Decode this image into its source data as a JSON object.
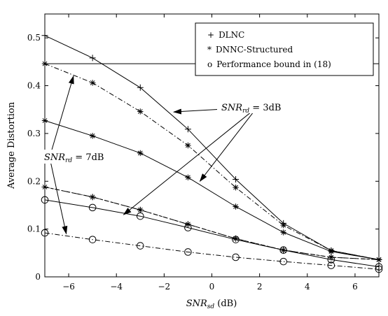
{
  "chart_data": {
    "type": "line",
    "title": "",
    "xlabel": {
      "main": "SNR",
      "sub": "sd",
      "unit": " (dB)"
    },
    "ylabel": "Average Distortion",
    "xlim": [
      -7,
      7
    ],
    "ylim": [
      0,
      0.55
    ],
    "xticks": [
      -6,
      -4,
      -2,
      0,
      2,
      4,
      6
    ],
    "yticks": [
      0,
      0.1,
      0.2,
      0.3,
      0.4,
      0.5
    ],
    "ytick_labels": [
      "0",
      "0.1",
      "0.2",
      "0.3",
      "0.4",
      "0.5"
    ],
    "grid": false,
    "legend": {
      "position": "top-right",
      "entries": [
        {
          "marker": "+",
          "label": "DLNC"
        },
        {
          "marker": "*",
          "label": "DNNC-Structured"
        },
        {
          "marker": "o",
          "label": "Performance bound in (18)"
        }
      ]
    },
    "series": [
      {
        "name": "DLNC",
        "snr_rd_dB": 3,
        "marker": "plus",
        "linestyle": "solid",
        "x": [
          -7,
          -5,
          -3,
          -1,
          1,
          3,
          5,
          7
        ],
        "y": [
          0.505,
          0.458,
          0.396,
          0.309,
          0.204,
          0.112,
          0.055,
          0.036
        ]
      },
      {
        "name": "DNNC-Structured",
        "snr_rd_dB": 3,
        "marker": "star",
        "linestyle": "dashdot",
        "x": [
          -7,
          -5,
          -3,
          -1,
          1,
          3,
          5,
          7
        ],
        "y": [
          0.446,
          0.406,
          0.346,
          0.275,
          0.187,
          0.108,
          0.055,
          0.036
        ]
      },
      {
        "name": "Performance bound in (18)",
        "snr_rd_dB": 3,
        "marker": "none",
        "linestyle": "solid",
        "x": [
          -7,
          7
        ],
        "y": [
          0.446,
          0.446
        ]
      },
      {
        "name": "DNNC-Structured",
        "snr_rd_dB": 7,
        "marker": "star",
        "linestyle": "solid",
        "x": [
          -7,
          -5,
          -3,
          -1,
          1,
          3,
          5,
          7
        ],
        "y": [
          0.327,
          0.295,
          0.259,
          0.208,
          0.147,
          0.093,
          0.053,
          0.036
        ]
      },
      {
        "name": "DLNC",
        "snr_rd_dB": 7,
        "marker": "plus",
        "linestyle": "dashed",
        "x": [
          -7,
          -5,
          -3,
          -1,
          1,
          3,
          5,
          7
        ],
        "y": [
          0.188,
          0.167,
          0.14,
          0.11,
          0.08,
          0.056,
          0.041,
          0.036
        ]
      },
      {
        "name": "DNNC-Structured",
        "snr_rd_dB": 7,
        "marker": "star",
        "linestyle": "dashdot",
        "x": [
          -7,
          -5,
          -3,
          -1,
          1,
          3,
          5,
          7
        ],
        "y": [
          0.188,
          0.167,
          0.14,
          0.11,
          0.08,
          0.056,
          0.041,
          0.036
        ]
      },
      {
        "name": "Performance bound in (18)",
        "snr_rd_dB": 7,
        "marker": "circle",
        "linestyle": "solid",
        "x": [
          -7,
          -5,
          -3,
          -1,
          1,
          3,
          5,
          7
        ],
        "y": [
          0.161,
          0.145,
          0.127,
          0.103,
          0.078,
          0.056,
          0.036,
          0.021
        ]
      },
      {
        "name": "Performance bound in (18)",
        "snr_rd_dB": 7,
        "marker": "circle",
        "linestyle": "dashdot",
        "x": [
          -7,
          -5,
          -3,
          -1,
          1,
          3,
          5,
          7
        ],
        "y": [
          0.092,
          0.078,
          0.065,
          0.052,
          0.041,
          0.032,
          0.024,
          0.016
        ]
      }
    ],
    "annotations": [
      {
        "id": "snr3",
        "main": "SNR",
        "sub": "rd",
        "rest": " = 3dB",
        "x": 1.9,
        "y": 0.355,
        "arrows_to": [
          [
            -1.6,
            0.345
          ],
          [
            -0.5,
            0.2
          ],
          [
            -3.7,
            0.13
          ]
        ]
      },
      {
        "id": "snr7",
        "main": "SNR",
        "sub": "rd",
        "rest": " = 7dB",
        "x": -6.8,
        "y": 0.25,
        "arrows_to": [
          [
            -5.8,
            0.42
          ],
          [
            -6.1,
            0.09
          ]
        ]
      }
    ]
  }
}
